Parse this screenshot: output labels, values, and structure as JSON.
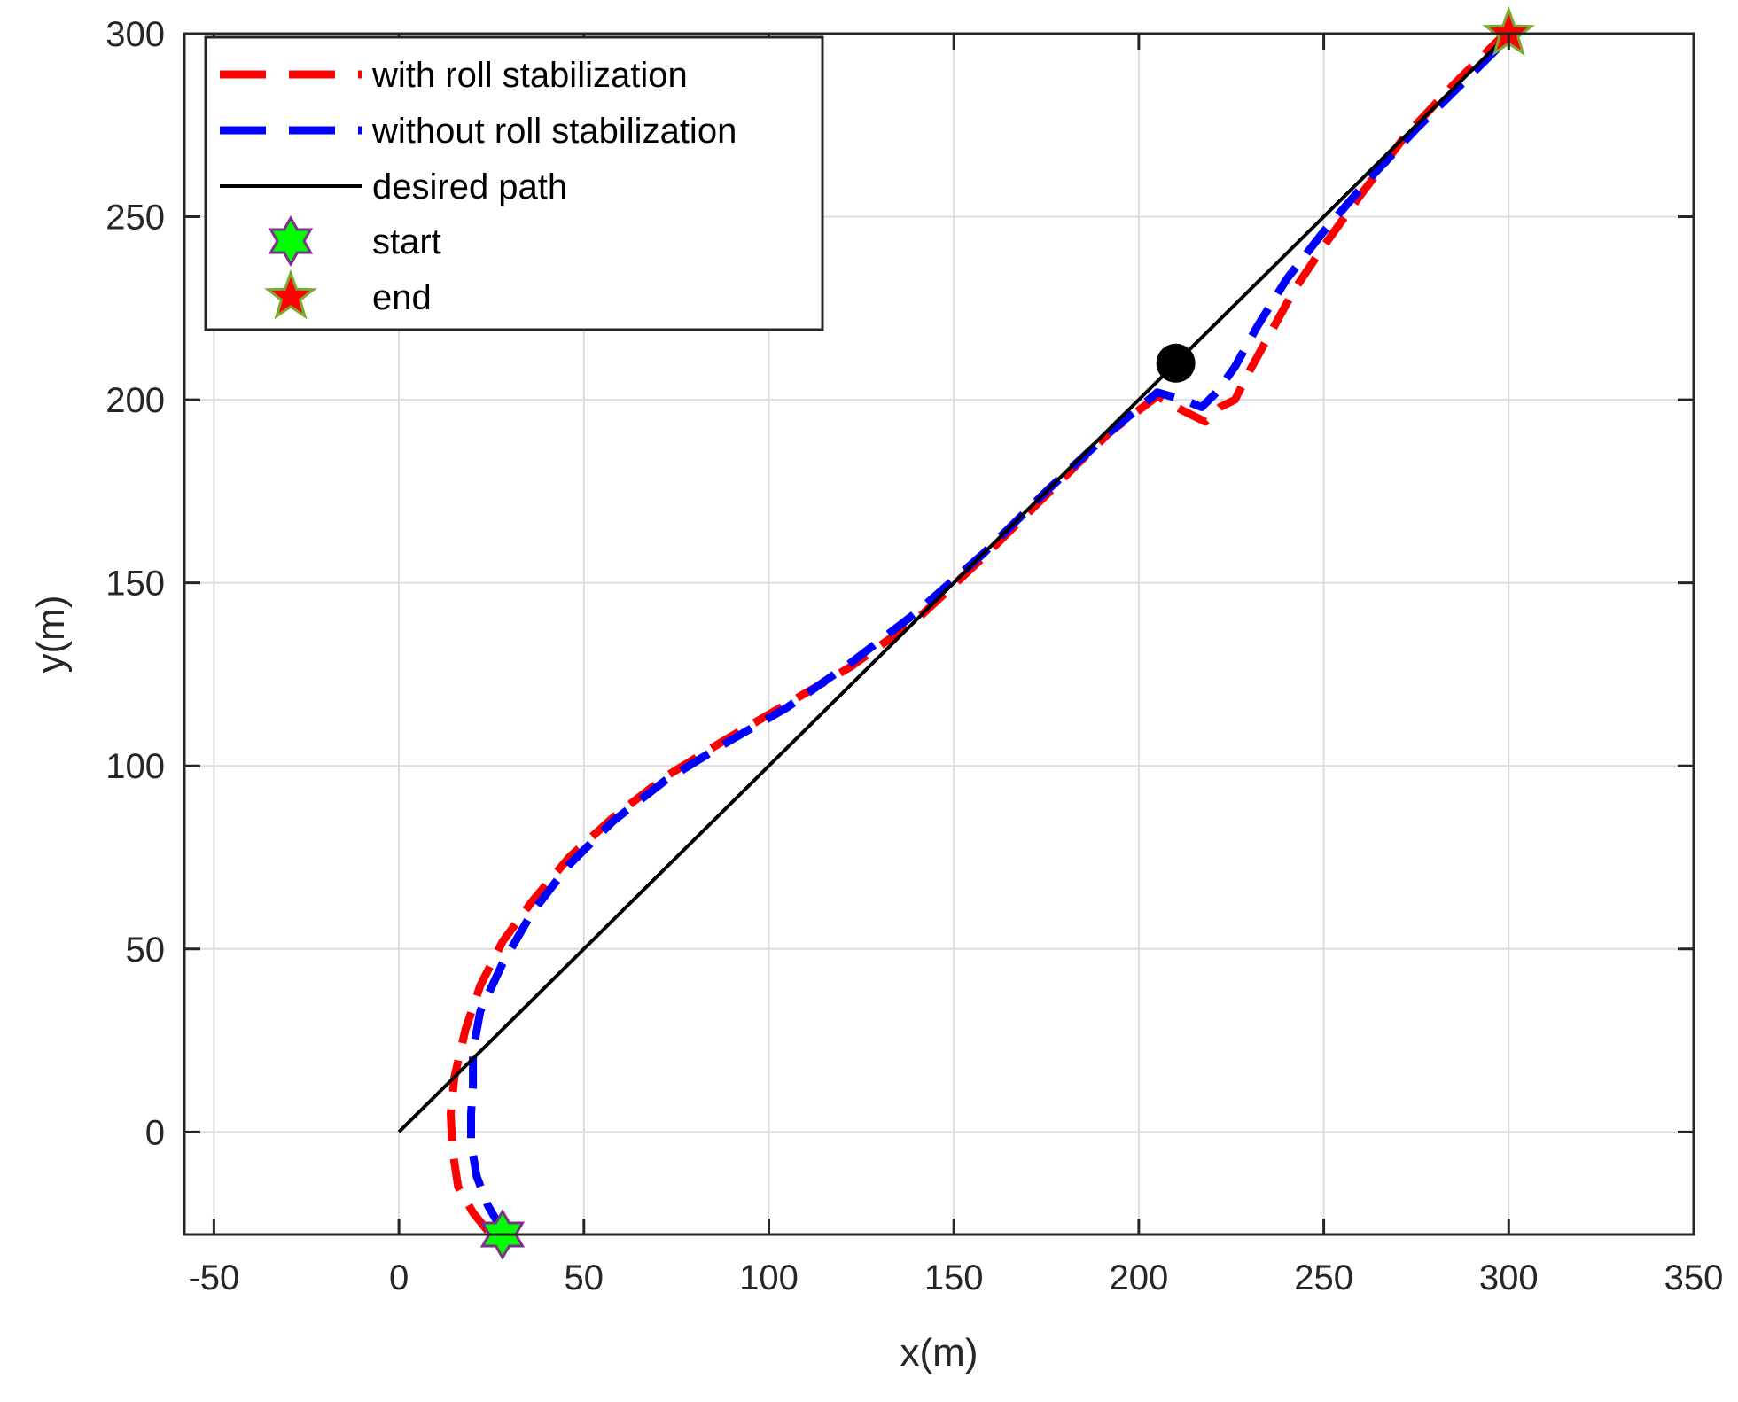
{
  "chart_data": {
    "type": "line",
    "title": "",
    "xlabel": "x(m)",
    "ylabel": "y(m)",
    "xlim": [
      -58,
      350
    ],
    "ylim": [
      -28,
      300
    ],
    "xticks": [
      -50,
      0,
      50,
      100,
      150,
      200,
      250,
      300,
      350
    ],
    "yticks": [
      0,
      50,
      100,
      150,
      200,
      250,
      300
    ],
    "grid": true,
    "legend_position": "top-left",
    "colors": {
      "with": "#ff0000",
      "without": "#0000ff",
      "desired": "#000000",
      "start_fill": "#00ff00",
      "start_edge": "#7e2f8e",
      "end_fill": "#ff0000",
      "end_edge": "#77ac30"
    },
    "series": [
      {
        "name": "with roll stabilization",
        "x": [
          24,
          20,
          16,
          14.5,
          14,
          15,
          18,
          22,
          28,
          36,
          46,
          58,
          72,
          88,
          105,
          122,
          140,
          158,
          175,
          192,
          205,
          212,
          218,
          222,
          226,
          230,
          236,
          242,
          250,
          260,
          272,
          285,
          298,
          301
        ],
        "y": [
          -27,
          -22,
          -15,
          -5,
          5,
          15,
          28,
          40,
          52,
          63,
          75,
          86,
          97,
          107,
          117,
          127,
          140,
          157,
          174,
          191,
          201,
          197,
          194,
          198,
          200,
          208,
          219,
          230,
          242,
          256,
          272,
          286,
          299,
          300
        ]
      },
      {
        "name": "without roll stabilization",
        "x": [
          28,
          24,
          21,
          19.5,
          19.5,
          20,
          20,
          22,
          28,
          36,
          46,
          58,
          72,
          88,
          105,
          122,
          140,
          158,
          175,
          192,
          205,
          212,
          217,
          221,
          226,
          232,
          240,
          250,
          262,
          275,
          288,
          300
        ],
        "y": [
          -27,
          -20,
          -12,
          -3,
          5,
          12,
          22,
          33,
          46,
          60,
          73,
          85,
          96,
          106,
          116,
          128,
          142,
          158,
          175,
          191,
          202,
          200,
          198,
          202,
          209,
          220,
          233,
          246,
          260,
          274,
          287,
          299
        ]
      },
      {
        "name": "desired path",
        "x": [
          0,
          300
        ],
        "y": [
          0,
          300
        ]
      }
    ],
    "markers": [
      {
        "name": "start",
        "x": 28,
        "y": -28
      },
      {
        "name": "end",
        "x": 300,
        "y": 300
      }
    ],
    "waypoint": {
      "x": 210,
      "y": 210
    }
  }
}
